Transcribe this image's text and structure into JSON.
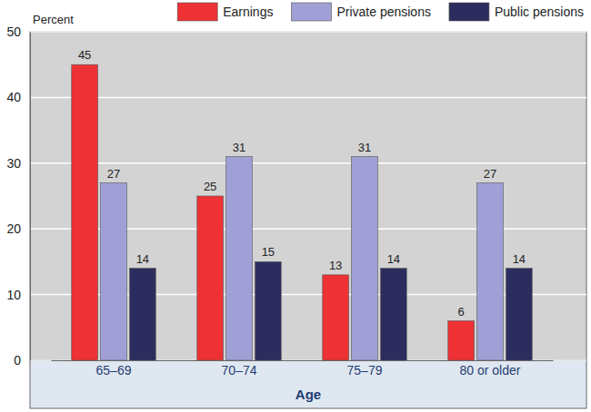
{
  "chart_data": {
    "type": "bar",
    "y_label": "Percent",
    "x_label": "Age",
    "categories": [
      "65–69",
      "70–74",
      "75–79",
      "80 or older"
    ],
    "series": [
      {
        "name": "Earnings",
        "color": "#ee3134",
        "values": [
          45,
          25,
          13,
          6
        ]
      },
      {
        "name": "Private pensions",
        "color": "#a0a0d6",
        "values": [
          27,
          31,
          31,
          27
        ]
      },
      {
        "name": "Public pensions",
        "color": "#2c2d5e",
        "values": [
          14,
          15,
          14,
          14
        ]
      }
    ],
    "ylim": [
      0,
      50
    ],
    "yticks": [
      0,
      10,
      20,
      30,
      40,
      50
    ],
    "grid": true,
    "data_labels": true,
    "legend": "top"
  }
}
